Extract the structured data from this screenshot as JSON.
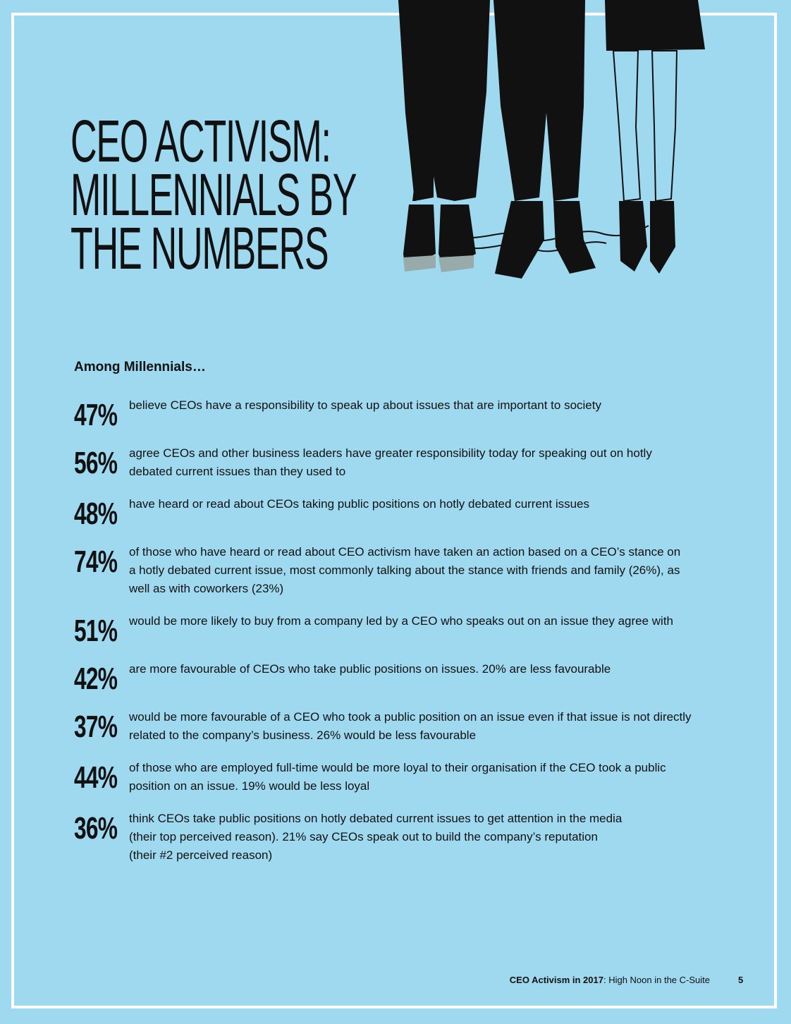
{
  "page": {
    "title_lines": [
      "CEO ACTIVISM:",
      "MILLENNIALS BY",
      "THE NUMBERS"
    ],
    "intro": "Among Millennials…",
    "stats": [
      {
        "value": "47%",
        "text": "believe CEOs have a responsibility to speak up about issues that are important to society"
      },
      {
        "value": "56%",
        "text": "agree CEOs and other business leaders have greater responsibility today for speaking out on hotly\ndebated current issues than they used to"
      },
      {
        "value": "48%",
        "text": "have heard or read about CEOs taking public positions on hotly debated current issues"
      },
      {
        "value": "74%",
        "text": "of those who have heard or read about CEO activism have taken an action based on a CEO’s stance on\na hotly debated current issue, most commonly talking about the stance with friends and family (26%), as\nwell as with coworkers (23%)"
      },
      {
        "value": "51%",
        "text": "would be more likely to buy from a company led by a CEO who speaks out on an issue they agree with"
      },
      {
        "value": "42%",
        "text": "are more favourable of CEOs who take public positions on issues. 20% are less favourable"
      },
      {
        "value": "37%",
        "text": "would be more favourable of a CEO who took a public position on an issue even if that issue is not directly\nrelated to the company’s business. 26% would be less favourable"
      },
      {
        "value": "44%",
        "text": "of those who are employed full-time would be more loyal to their organisation if the CEO took a public\nposition on an issue. 19% would be less loyal"
      },
      {
        "value": "36%",
        "text": "think CEOs take public positions on hotly debated current issues to get attention in the media\n(their top perceived reason). 21% say CEOs speak out to build the company’s reputation\n(their #2 perceived reason)"
      }
    ],
    "footer": {
      "title_bold": "CEO Activism in 2017",
      "title_rest": ": High Noon in the C-Suite",
      "page_number": "5"
    }
  },
  "colors": {
    "background": "#9ed9f0",
    "text": "#111111",
    "frame": "#ffffff"
  },
  "illustration": "legs-and-shoes-illustration"
}
